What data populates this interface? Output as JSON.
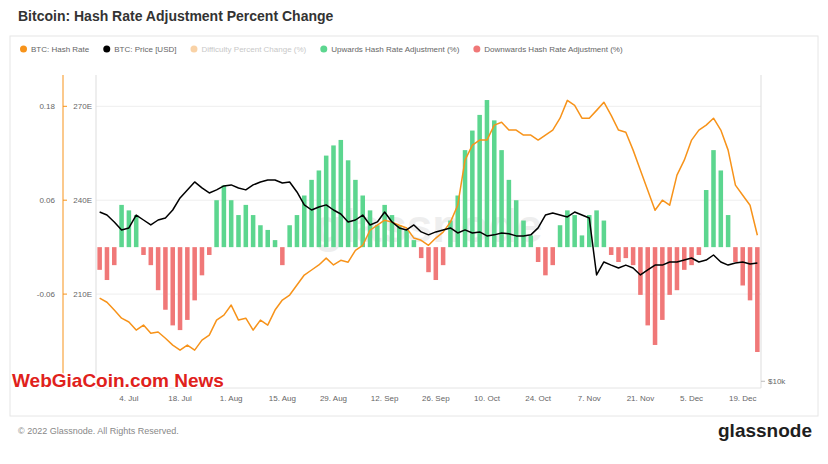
{
  "chart_data": [
    {
      "type": "bar",
      "title": "Bitcoin: Hash Rate Adjustment Percent Change",
      "categories": [
        null,
        null,
        null,
        null,
        "4. Jul",
        null,
        null,
        null,
        null,
        null,
        null,
        "18. Jul",
        null,
        null,
        null,
        null,
        null,
        null,
        "1. Aug",
        null,
        null,
        null,
        null,
        null,
        null,
        "15. Aug",
        null,
        null,
        null,
        null,
        null,
        null,
        "29. Aug",
        null,
        null,
        null,
        null,
        null,
        null,
        "12. Sep",
        null,
        null,
        null,
        null,
        null,
        null,
        "26. Sep",
        null,
        null,
        null,
        null,
        null,
        null,
        "10. Oct",
        null,
        null,
        null,
        null,
        null,
        null,
        "24. Oct",
        null,
        null,
        null,
        null,
        null,
        null,
        "7. Nov",
        null,
        null,
        null,
        null,
        null,
        null,
        "21. Nov",
        null,
        null,
        null,
        null,
        null,
        null,
        "5. Dec",
        null,
        null,
        null,
        null,
        null,
        null,
        "19. Dec",
        null,
        null
      ],
      "series": [
        {
          "name": "BTC: Hash Rate",
          "type": "line",
          "axis": "y2",
          "color": "#f7931a",
          "values": [
            208.7,
            207.4,
            204.9,
            202.3,
            201.1,
            198.5,
            200.1,
            197.5,
            197.9,
            195.9,
            193.7,
            192.1,
            193.7,
            192.1,
            195.3,
            196.9,
            201.7,
            203.3,
            206.5,
            201.7,
            202.3,
            198.5,
            201.7,
            200.1,
            204.9,
            208.1,
            209.7,
            212.9,
            216.1,
            217.7,
            219.3,
            221.5,
            219.3,
            220.8,
            220.2,
            224.0,
            225.6,
            230.4,
            232.0,
            233.6,
            233.0,
            232.0,
            231.1,
            227.9,
            227.2,
            225.6,
            227.9,
            229.8,
            233.0,
            238.4,
            252.8,
            257.6,
            259.2,
            259.2,
            264.0,
            264.9,
            262.4,
            262.4,
            260.8,
            260.8,
            259.2,
            260.8,
            262.4,
            266.2,
            271.9,
            270.3,
            266.2,
            266.2,
            268.7,
            271.3,
            267.1,
            262.4,
            261.7,
            256.0,
            249.6,
            243.2,
            236.8,
            240.0,
            238.4,
            248.0,
            252.8,
            259.2,
            262.4,
            264.0,
            266.2,
            262.4,
            256.0,
            244.8,
            241.6,
            238.4,
            228.8
          ]
        },
        {
          "name": "Difficulty Percent Change (%)",
          "type": "line",
          "color": "#f9d2a6",
          "values": [
            null,
            null,
            null,
            null,
            null,
            null,
            null,
            null,
            null,
            null,
            null,
            null,
            null,
            null,
            null,
            null,
            null,
            null,
            null,
            null,
            null,
            null,
            null,
            null,
            null,
            null,
            null,
            null,
            null,
            null,
            null,
            null,
            null,
            null,
            null,
            null,
            null,
            null,
            null,
            null,
            null,
            null,
            null,
            null,
            null,
            null,
            null,
            null,
            null,
            null,
            null,
            null,
            null,
            null,
            null,
            null,
            null,
            null,
            null,
            null,
            null,
            null,
            null,
            null,
            null,
            null,
            null,
            null,
            null,
            null,
            null,
            null,
            null,
            null,
            null,
            null,
            null,
            null,
            null,
            null,
            null,
            null,
            null,
            null,
            null,
            null,
            null,
            null,
            null,
            null,
            null
          ]
        },
        {
          "name": "Upwards Hash Rate Adjustment (%)",
          "type": "bar",
          "color": "#5cd68f",
          "values": [
            null,
            null,
            null,
            0.054,
            0.047,
            0.041,
            null,
            null,
            null,
            null,
            null,
            null,
            null,
            null,
            null,
            null,
            0.06,
            0.079,
            0.06,
            0.041,
            0.054,
            0.041,
            0.028,
            0.022,
            0.009,
            null,
            0.028,
            0.041,
            0.066,
            0.086,
            0.098,
            0.117,
            0.13,
            0.137,
            0.111,
            0.086,
            0.066,
            0.047,
            0.028,
            0.054,
            0.041,
            0.028,
            0.022,
            0.009,
            null,
            null,
            null,
            null,
            0.034,
            0.066,
            0.124,
            0.149,
            0.169,
            0.188,
            0.162,
            0.124,
            0.086,
            0.06,
            0.034,
            0.015,
            null,
            null,
            null,
            0.028,
            0.047,
            0.041,
            0.015,
            0.041,
            0.047,
            0.034,
            null,
            null,
            null,
            null,
            null,
            null,
            null,
            null,
            null,
            null,
            null,
            null,
            null,
            0.073,
            0.124,
            0.098,
            0.041,
            null,
            null,
            null,
            null
          ]
        },
        {
          "name": "Downwards Hash Rate Adjustment (%)",
          "type": "bar",
          "color": "#f07878",
          "values": [
            -0.029,
            -0.042,
            -0.023,
            null,
            null,
            null,
            -0.01,
            -0.023,
            -0.055,
            -0.08,
            -0.1,
            -0.106,
            -0.093,
            -0.068,
            -0.036,
            -0.01,
            null,
            null,
            null,
            null,
            null,
            null,
            null,
            null,
            null,
            -0.023,
            null,
            null,
            null,
            null,
            null,
            null,
            null,
            null,
            null,
            null,
            null,
            null,
            null,
            null,
            null,
            null,
            null,
            null,
            -0.014,
            -0.032,
            -0.042,
            -0.023,
            null,
            null,
            null,
            null,
            null,
            null,
            null,
            null,
            null,
            null,
            null,
            null,
            -0.019,
            -0.036,
            -0.023,
            null,
            null,
            null,
            null,
            null,
            null,
            null,
            -0.01,
            -0.019,
            -0.014,
            -0.023,
            -0.061,
            -0.1,
            -0.125,
            -0.093,
            -0.061,
            -0.055,
            -0.029,
            -0.023,
            -0.01,
            null,
            null,
            null,
            null,
            -0.019,
            -0.049,
            -0.068,
            -0.134
          ]
        }
      ],
      "ylim": [
        -0.18,
        0.22
      ],
      "yticks": [
        0.18,
        0.06,
        -0.06
      ],
      "y2lim": [
        180,
        280
      ],
      "y2ticks": [
        {
          "value": 270,
          "label": "270E"
        },
        {
          "value": 240,
          "label": "240E"
        },
        {
          "value": 210,
          "label": "210E"
        }
      ],
      "grid": true,
      "legend": "top-left",
      "annotations": [
        "glassnode",
        "WebGiaCoin.com News",
        "© 2022 Glassnode. All Rights Reserved.",
        "glassnode"
      ]
    },
    {
      "type": "line",
      "categories": [
        null,
        null,
        null,
        null,
        null,
        null,
        null,
        null,
        null,
        null,
        null,
        null,
        null,
        null,
        null,
        null,
        null,
        null,
        null,
        null,
        null,
        null,
        null,
        null,
        null,
        null,
        null,
        null,
        null,
        null,
        null,
        null,
        null,
        null,
        null,
        null,
        null,
        null,
        null,
        null,
        null,
        null,
        null,
        null,
        null,
        null,
        null,
        null,
        null,
        null,
        null,
        null,
        null,
        null,
        null,
        null,
        null,
        null,
        null,
        null,
        null,
        null,
        null,
        null,
        null,
        null,
        null,
        null,
        null,
        null,
        null,
        null,
        null,
        null,
        null,
        null,
        null,
        null,
        null,
        null,
        null,
        null,
        null,
        null,
        null,
        null,
        null,
        null,
        null,
        null,
        null
      ],
      "series": [
        {
          "name": "BTC: Price [USD]",
          "color": "#000000",
          "values": [
            21510,
            21220,
            20570,
            19840,
            20020,
            21220,
            20750,
            20290,
            20750,
            20940,
            21710,
            22930,
            23780,
            24650,
            23990,
            23450,
            23780,
            24210,
            24320,
            23990,
            23780,
            24320,
            24650,
            24870,
            24870,
            24540,
            24650,
            23560,
            22220,
            21710,
            22010,
            22220,
            21710,
            21320,
            20570,
            20750,
            21220,
            20290,
            20570,
            21510,
            20570,
            20020,
            19840,
            20290,
            19660,
            19400,
            19660,
            19840,
            20020,
            19570,
            19840,
            19570,
            19660,
            19310,
            19400,
            19570,
            19490,
            19310,
            19310,
            19400,
            20020,
            21220,
            21410,
            21220,
            21040,
            21510,
            21220,
            20940,
            16180,
            17160,
            16920,
            16700,
            16920,
            16700,
            16180,
            16550,
            16920,
            16920,
            17160,
            17160,
            17310,
            17470,
            17160,
            17310,
            17710,
            17160,
            16920,
            17080,
            17160,
            17000,
            17080
          ]
        }
      ],
      "ylim": [
        9700,
        40000
      ],
      "yticks": [
        {
          "value": 10000,
          "label": "$10k"
        }
      ],
      "log": "y",
      "tick_labels": "y"
    }
  ]
}
